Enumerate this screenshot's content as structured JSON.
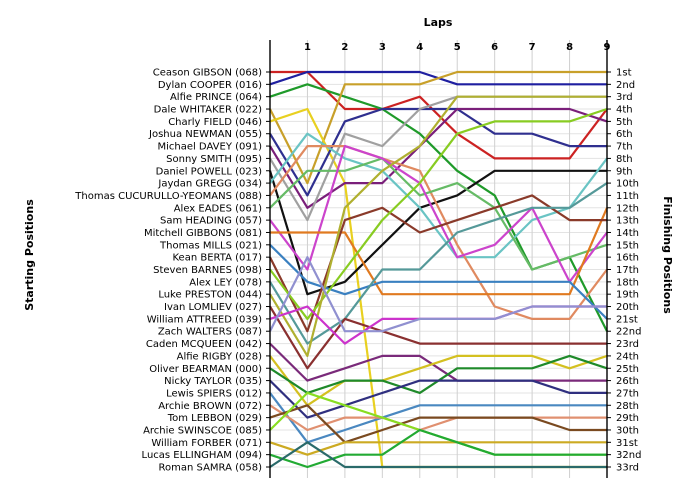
{
  "chart_data": {
    "type": "line",
    "title": "",
    "top_axis_label": "Laps",
    "left_axis_label": "Starting Positions",
    "right_axis_label": "Finishing Positions",
    "laps": [
      "1",
      "2",
      "3",
      "4",
      "5",
      "6",
      "7",
      "8",
      "9"
    ],
    "finishing_labels": [
      "1st",
      "2nd",
      "3rd",
      "4th",
      "5th",
      "6th",
      "7th",
      "8th",
      "9th",
      "10th",
      "11th",
      "12th",
      "13th",
      "14th",
      "15th",
      "16th",
      "17th",
      "18th",
      "19th",
      "20th",
      "21st",
      "22nd",
      "23rd",
      "24th",
      "25th",
      "26th",
      "27th",
      "28th",
      "29th",
      "30th",
      "31st",
      "32nd",
      "33rd"
    ],
    "grid": true,
    "series": [
      {
        "name": "Ceason GIBSON (068)",
        "color": "#cc2222",
        "positions": [
          1,
          4,
          4,
          3,
          6,
          8,
          8,
          8,
          4
        ]
      },
      {
        "name": "Dylan COOPER (016)",
        "color": "#1f1fa0",
        "positions": [
          1,
          1,
          1,
          1,
          2,
          2,
          2,
          2,
          2
        ]
      },
      {
        "name": "Alfie PRINCE (064)",
        "color": "#1f9a2a",
        "positions": [
          2,
          3,
          4,
          6,
          9,
          11,
          17,
          16,
          22
        ]
      },
      {
        "name": "Dale WHITAKER (022)",
        "color": "#c8a02a",
        "positions": [
          10,
          2,
          2,
          2,
          1,
          1,
          1,
          1,
          1
        ]
      },
      {
        "name": "Charly FIELD (046)",
        "color": "#e8d020",
        "positions": [
          4,
          10,
          33,
          33,
          33,
          33,
          33,
          33,
          33
        ]
      },
      {
        "name": "Joshua NEWMAN (055)",
        "color": "#2f2f8f",
        "positions": [
          11,
          5,
          4,
          4,
          4,
          6,
          6,
          7,
          7
        ]
      },
      {
        "name": "Michael DAVEY (091)",
        "color": "#7a1f7a",
        "positions": [
          12,
          10,
          10,
          7,
          4,
          4,
          4,
          4,
          5
        ]
      },
      {
        "name": "Sonny SMITH (095)",
        "color": "#a0a0a0",
        "positions": [
          13,
          6,
          7,
          4,
          3,
          3,
          3,
          3,
          3
        ]
      },
      {
        "name": "Daniel POWELL (023)",
        "color": "#111111",
        "positions": [
          19,
          18,
          15,
          12,
          11,
          9,
          9,
          9,
          9
        ]
      },
      {
        "name": "Jaydan GREGG (034)",
        "color": "#6ac4c4",
        "positions": [
          6,
          8,
          9,
          12,
          16,
          16,
          13,
          12,
          8
        ]
      },
      {
        "name": "Thomas CUCURULLO-YEOMANS (088)",
        "color": "#e08a60",
        "positions": [
          7,
          7,
          8,
          9,
          15,
          20,
          21,
          21,
          17
        ]
      },
      {
        "name": "Alex EADES (061)",
        "color": "#66bb66",
        "positions": [
          9,
          9,
          8,
          11,
          10,
          12,
          17,
          16,
          15
        ]
      },
      {
        "name": "Sam HEADING (057)",
        "color": "#cc44cc",
        "positions": [
          17,
          7,
          8,
          10,
          16,
          15,
          12,
          18,
          14
        ]
      },
      {
        "name": "Mitchell GIBBONS (081)",
        "color": "#e07a20",
        "positions": [
          14,
          14,
          19,
          19,
          19,
          19,
          19,
          19,
          12
        ]
      },
      {
        "name": "Thomas MILLS (021)",
        "color": "#3a80c0",
        "positions": [
          18,
          19,
          18,
          18,
          18,
          18,
          18,
          18,
          21
        ]
      },
      {
        "name": "Kean BERTA (017)",
        "color": "#8a3a2a",
        "positions": [
          22,
          13,
          12,
          14,
          13,
          12,
          11,
          13,
          13
        ]
      },
      {
        "name": "Steven BARNES (098)",
        "color": "#88cc22",
        "positions": [
          21,
          17,
          13,
          10,
          6,
          5,
          5,
          5,
          4
        ]
      },
      {
        "name": "Alex LEY (078)",
        "color": "#559999",
        "positions": [
          23,
          21,
          17,
          17,
          14,
          13,
          12,
          12,
          10
        ]
      },
      {
        "name": "Luke PRESTON (044)",
        "color": "#b0b030",
        "positions": [
          24,
          12,
          9,
          7,
          3,
          3,
          3,
          3,
          3
        ]
      },
      {
        "name": "Ivan LOMLIEV (027)",
        "color": "#8a3030",
        "positions": [
          25,
          21,
          22,
          23,
          23,
          23,
          23,
          23,
          23
        ]
      },
      {
        "name": "William ATTREED (039)",
        "color": "#cc33cc",
        "positions": [
          20,
          23,
          21,
          21,
          21,
          21,
          20,
          20,
          20
        ]
      },
      {
        "name": "Zach WALTERS (087)",
        "color": "#9090d0",
        "positions": [
          16,
          22,
          22,
          21,
          21,
          21,
          20,
          20,
          20
        ]
      },
      {
        "name": "Caden MCQUEEN (042)",
        "color": "#7a2a7a",
        "positions": [
          26,
          25,
          24,
          24,
          26,
          26,
          26,
          26,
          26
        ]
      },
      {
        "name": "Alfie RIGBY (028)",
        "color": "#d4c020",
        "positions": [
          28,
          26,
          26,
          25,
          24,
          24,
          24,
          25,
          24
        ]
      },
      {
        "name": "Oliver BEARMAN (000)",
        "color": "#1f8a2a",
        "positions": [
          27,
          26,
          26,
          27,
          25,
          25,
          25,
          24,
          25
        ]
      },
      {
        "name": "Nicky TAYLOR (035)",
        "color": "#2f2f7f",
        "positions": [
          29,
          28,
          27,
          26,
          26,
          26,
          26,
          27,
          27
        ]
      },
      {
        "name": "Lewis SPIERS (012)",
        "color": "#4a88c0",
        "positions": [
          31,
          30,
          29,
          28,
          28,
          28,
          28,
          28,
          28
        ]
      },
      {
        "name": "Archie BROWN (072)",
        "color": "#e09070",
        "positions": [
          30,
          29,
          29,
          30,
          29,
          29,
          29,
          29,
          29
        ]
      },
      {
        "name": "Tom LEBBON (029)",
        "color": "#7a4a20",
        "positions": [
          28,
          31,
          30,
          29,
          29,
          29,
          29,
          30,
          30
        ]
      },
      {
        "name": "Archie SWINSCOE (085)",
        "color": "#88dd22",
        "positions": [
          27,
          28,
          29,
          30,
          31,
          32,
          32,
          32,
          32
        ]
      },
      {
        "name": "William FORBER (071)",
        "color": "#ccaa22",
        "positions": [
          32,
          31,
          31,
          31,
          31,
          31,
          31,
          31,
          31
        ]
      },
      {
        "name": "Lucas ELLINGHAM (094)",
        "color": "#22aa33",
        "positions": [
          33,
          32,
          32,
          30,
          31,
          32,
          32,
          32,
          32
        ]
      },
      {
        "name": "Roman SAMRA (058)",
        "color": "#2a6a6a",
        "positions": [
          31,
          33,
          33,
          33,
          33,
          33,
          33,
          33,
          33
        ]
      }
    ]
  }
}
